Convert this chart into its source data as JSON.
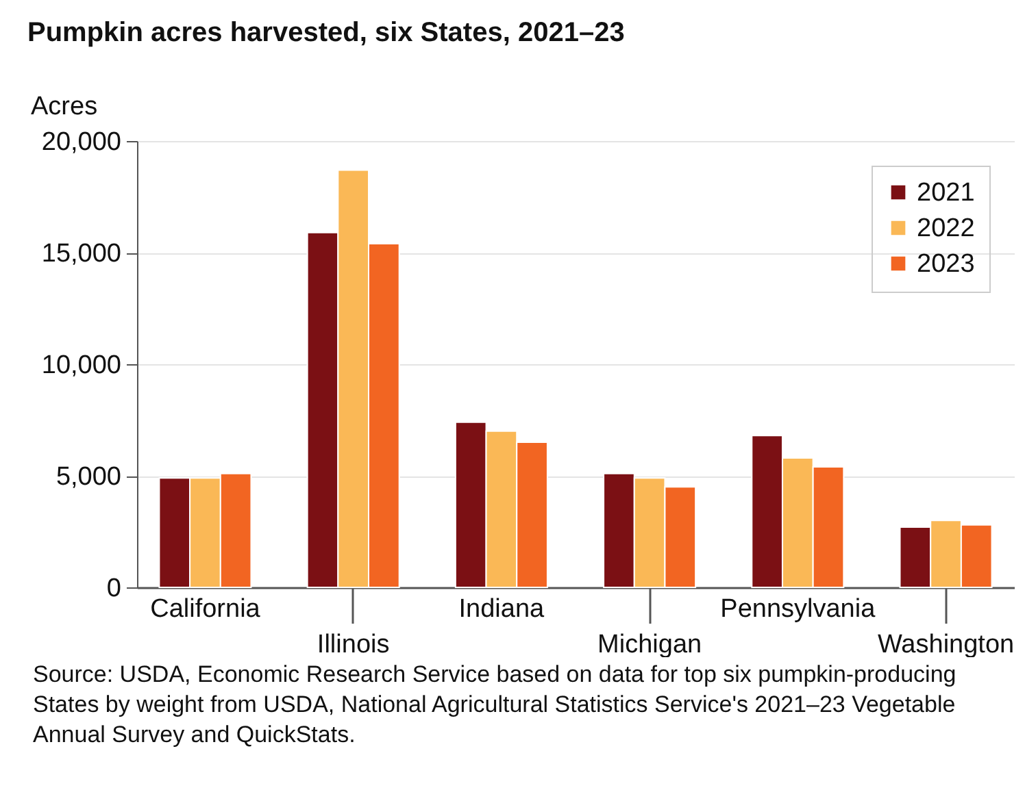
{
  "chart_data": {
    "type": "bar",
    "title": "Pumpkin acres harvested, six States, 2021–23",
    "ylabel": "Acres",
    "categories": [
      "California",
      "Illinois",
      "Indiana",
      "Michigan",
      "Pennsylvania",
      "Washington"
    ],
    "series": [
      {
        "name": "2021",
        "color": "#7b1014",
        "values": [
          4900,
          15900,
          7400,
          5100,
          6800,
          2700
        ]
      },
      {
        "name": "2022",
        "color": "#fab856",
        "values": [
          4900,
          18700,
          7000,
          4900,
          5800,
          3000
        ]
      },
      {
        "name": "2023",
        "color": "#f26522",
        "values": [
          5100,
          15400,
          6500,
          4500,
          5400,
          2800
        ]
      }
    ],
    "ylim": [
      0,
      20000
    ],
    "yticks": [
      0,
      {
        "value": 5000,
        "label": "5,000"
      },
      {
        "value": 10000,
        "label": "10,000"
      },
      {
        "value": 15000,
        "label": "15,000"
      },
      {
        "value": 20000,
        "label": "20,000"
      }
    ],
    "grid": "y",
    "legend": "top right",
    "annotations": [
      "Source: USDA, Economic Research Service based on data for top six pumpkin-producing States by weight from USDA, National Agricultural Statistics Service's 2021–23 Vegetable Annual Survey and QuickStats."
    ]
  }
}
